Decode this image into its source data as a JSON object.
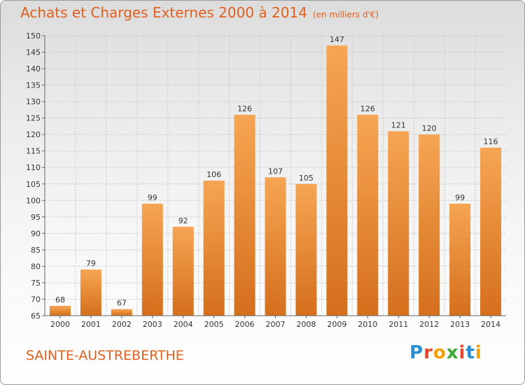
{
  "header": {
    "title": "Achats et Charges Externes 2000 à 2014",
    "unit": "(en milliers d'€)"
  },
  "footer": {
    "commune": "SAINTE-AUSTREBERTHE",
    "logo": {
      "text": "Proxiti",
      "letters": [
        {
          "char": "P",
          "color": "#2a8fd0"
        },
        {
          "char": "r",
          "color": "#e8462a"
        },
        {
          "char": "o",
          "color": "#f2a100"
        },
        {
          "char": "x",
          "color": "#3aaa35"
        },
        {
          "char": "i",
          "color": "#e8462a"
        },
        {
          "char": "t",
          "color": "#2a8fd0"
        },
        {
          "char": "i",
          "color": "#f2a100"
        }
      ]
    }
  },
  "colors": {
    "title": "#e2601e",
    "bar_top": "#f6a552",
    "bar_bottom": "#d56f1c",
    "grid": "#c8c8c8"
  },
  "chart_data": {
    "type": "bar",
    "title": "Achats et Charges Externes 2000 à 2014",
    "ylabel": "(en milliers d'€)",
    "xlabel": "",
    "categories": [
      "2000",
      "2001",
      "2002",
      "2003",
      "2004",
      "2005",
      "2006",
      "2007",
      "2008",
      "2009",
      "2010",
      "2011",
      "2012",
      "2013",
      "2014"
    ],
    "values": [
      68,
      79,
      67,
      99,
      92,
      106,
      126,
      107,
      105,
      147,
      126,
      121,
      120,
      99,
      116
    ],
    "ylim": [
      65,
      150
    ],
    "yticks": [
      65,
      70,
      75,
      80,
      85,
      90,
      95,
      100,
      105,
      110,
      115,
      120,
      125,
      130,
      135,
      140,
      145,
      150
    ],
    "grid": true,
    "data_labels": true
  }
}
